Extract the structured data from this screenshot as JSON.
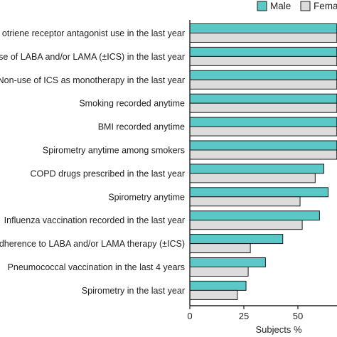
{
  "chart_data": {
    "type": "bar",
    "orientation": "horizontal",
    "categories": [
      "otriene receptor antagonist use in the last year",
      "se of LABA and/or LAMA (±ICS) in the last year",
      "Non-use of ICS as monotherapy in the last year",
      "Smoking recorded anytime",
      "BMI recorded anytime",
      "Spirometry anytime among smokers",
      "COPD drugs prescribed in the last year",
      "Spirometry anytime",
      "Influenza vaccination recorded in the last year",
      "dherence to LABA and/or LAMA therapy (±ICS)",
      "Pneumococcal vaccination in the last 4 years",
      "Spirometry in the last year"
    ],
    "series": [
      {
        "name": "Male",
        "color": "#5bc8c8",
        "values": [
          68,
          68,
          68,
          68,
          68,
          68,
          62,
          64,
          60,
          43,
          35,
          26
        ]
      },
      {
        "name": "Fema",
        "color": "#dcdcdc",
        "values": [
          68,
          68,
          68,
          68,
          68,
          68,
          58,
          51,
          52,
          28,
          27,
          22
        ]
      }
    ],
    "xlabel": "Subjects %",
    "xticks": [
      0,
      25,
      50
    ],
    "xlim": [
      0,
      68.5
    ],
    "legend_position": "top-right",
    "grid": false,
    "bar_edge_color": "#1a1a1a"
  }
}
